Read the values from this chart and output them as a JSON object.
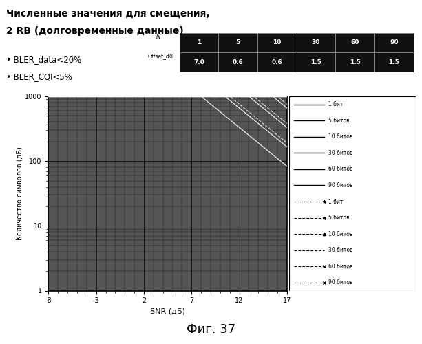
{
  "title_line1": "Численные значения для смещения,",
  "title_line2": "2 RB (долговременные данные)",
  "bullet1": "• BLER_data<20%",
  "bullet2": "• BLER_CQI<5%",
  "table_label_n": "N",
  "table_label_offset": "Offset_dB",
  "table_n_values": [
    "1",
    "5",
    "10",
    "30",
    "60",
    "90"
  ],
  "table_offset_values": [
    "7.0",
    "0.6",
    "0.6",
    "1.5",
    "1.5",
    "1.5"
  ],
  "xlabel": "SNR (дБ)",
  "ylabel": "Количество символов (дБ)",
  "xmin": -8,
  "xmax": 17,
  "ymin": 1,
  "ymax": 1000,
  "xticks": [
    -8,
    -3,
    2,
    7,
    12,
    17
  ],
  "legend_solid": [
    "1 бит",
    "5 битов",
    "10 битов",
    "30 битов",
    "60 битов",
    "90 битов"
  ],
  "legend_dashed": [
    "1 бит",
    "5 битов",
    "10 битов",
    "30 битов",
    "60 битов",
    "90 битов"
  ],
  "fig_caption": "Фиг. 37",
  "background_color": "#ffffff",
  "plot_bg": "#555555",
  "grid_color": "#000000",
  "line_color": "#dddddd"
}
